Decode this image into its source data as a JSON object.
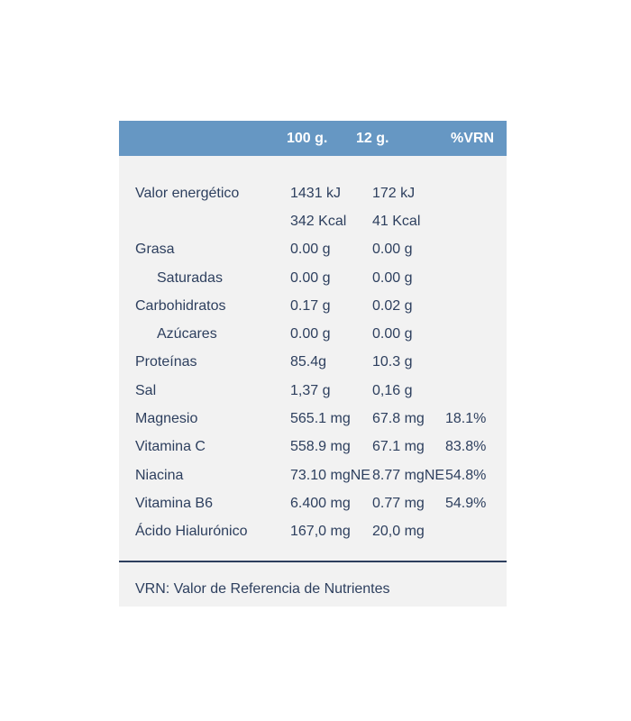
{
  "panel": {
    "header": {
      "col_per_100g": "100 g.",
      "col_per_12g": "12 g.",
      "col_vrn": "%VRN"
    },
    "rows": [
      {
        "label": "Valor energético",
        "v100": "1431 kJ",
        "v12": "172 kJ",
        "vrn": "",
        "indent": false
      },
      {
        "label": "",
        "v100": "342 Kcal",
        "v12": "41 Kcal",
        "vrn": "",
        "indent": false
      },
      {
        "label": "Grasa",
        "v100": "0.00 g",
        "v12": "0.00 g",
        "vrn": "",
        "indent": false
      },
      {
        "label": "Saturadas",
        "v100": "0.00 g",
        "v12": "0.00 g",
        "vrn": "",
        "indent": true
      },
      {
        "label": "Carbohidratos",
        "v100": "0.17 g",
        "v12": "0.02 g",
        "vrn": "",
        "indent": false
      },
      {
        "label": "Azúcares",
        "v100": "0.00 g",
        "v12": "0.00 g",
        "vrn": "",
        "indent": true
      },
      {
        "label": "Proteínas",
        "v100": "85.4g",
        "v12": "10.3 g",
        "vrn": "",
        "indent": false
      },
      {
        "label": "Sal",
        "v100": "1,37 g",
        "v12": "0,16 g",
        "vrn": "",
        "indent": false
      },
      {
        "label": "Magnesio",
        "v100": "565.1 mg",
        "v12": "67.8 mg",
        "vrn": "18.1%",
        "indent": false
      },
      {
        "label": "Vitamina C",
        "v100": "558.9 mg",
        "v12": "67.1 mg",
        "vrn": "83.8%",
        "indent": false
      },
      {
        "label": "Niacina",
        "v100": "73.10 mgNE",
        "v12": "8.77 mgNE",
        "vrn": "54.8%",
        "indent": false
      },
      {
        "label": "Vitamina B6",
        "v100": "6.400 mg",
        "v12": "0.77 mg",
        "vrn": "54.9%",
        "indent": false
      },
      {
        "label": "Ácido Hialurónico",
        "v100": "167,0 mg",
        "v12": "20,0 mg",
        "vrn": "",
        "indent": false
      }
    ],
    "footnote": "VRN: Valor de Referencia de Nutrientes"
  },
  "colors": {
    "header_bg": "#6697c3",
    "header_text": "#ffffff",
    "body_text": "#2d3f5e",
    "card_bg": "#f2f2f2",
    "divider": "#2d3f5e",
    "page_bg": "#ffffff"
  }
}
